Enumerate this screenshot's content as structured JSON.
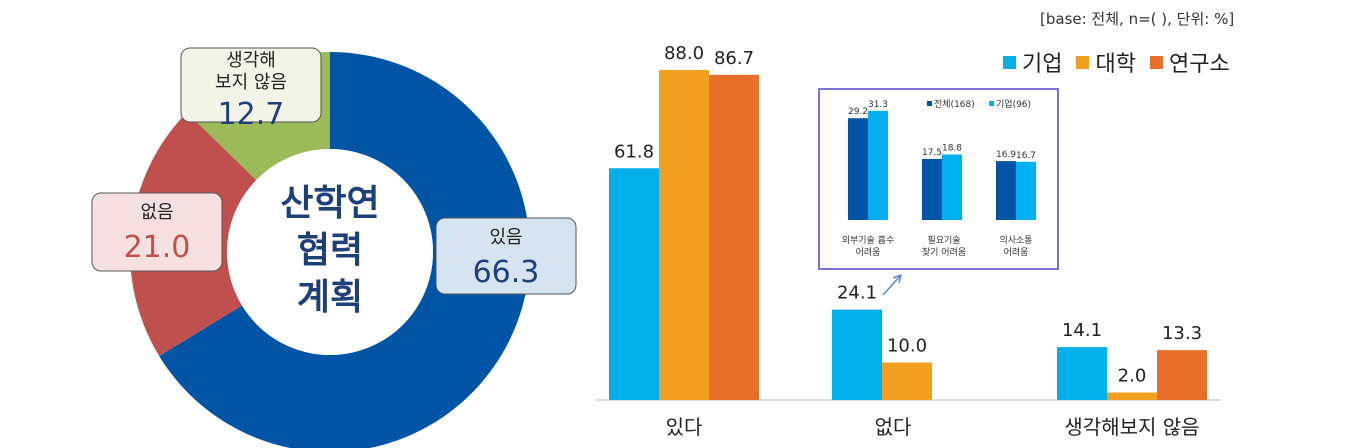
{
  "base_note": "[base: 전체, n=( ), 단위: %]",
  "colors": {
    "donut_yes": "#0054a6",
    "donut_no": "#c0504d",
    "donut_unsure": "#9bbb59",
    "company": "#00b0e8",
    "university": "#f0a01e",
    "institute": "#e8702a",
    "inset_total": "#0054a6",
    "inset_company": "#00b0f0"
  },
  "chart_data": [
    {
      "type": "pie",
      "title": "",
      "center_label": [
        "산학연",
        "협력",
        "계획"
      ],
      "slices": [
        {
          "label": "있음",
          "value": 66.3,
          "color_key": "donut_yes"
        },
        {
          "label": "없음",
          "value": 21.0,
          "color_key": "donut_no"
        },
        {
          "label": "생각해 보지 않음",
          "label_lines": [
            "생각해",
            "보지 않음"
          ],
          "value": 12.7,
          "color_key": "donut_unsure"
        }
      ]
    },
    {
      "type": "bar",
      "title": "",
      "categories": [
        "있다",
        "없다",
        "생각해보지 않음"
      ],
      "series": [
        {
          "name": "기업",
          "color_key": "company",
          "values": [
            61.8,
            24.1,
            14.1
          ]
        },
        {
          "name": "대학",
          "color_key": "university",
          "values": [
            88.0,
            10.0,
            2.0
          ]
        },
        {
          "name": "연구소",
          "color_key": "institute",
          "values": [
            86.7,
            null,
            13.3
          ]
        }
      ],
      "ylim": [
        0,
        100
      ],
      "legend_position": "top-right"
    },
    {
      "type": "bar",
      "title": "",
      "categories": [
        [
          "외부기술 흡수",
          "어려움"
        ],
        [
          "필요기술",
          "찾기 어려움"
        ],
        [
          "의사소통",
          "어려움"
        ]
      ],
      "series": [
        {
          "name": "전체(168)",
          "color_key": "inset_total",
          "values": [
            29.2,
            17.5,
            16.9
          ]
        },
        {
          "name": "기업(96)",
          "color_key": "inset_company",
          "values": [
            31.3,
            18.8,
            16.7
          ]
        }
      ],
      "ylim": [
        0,
        35
      ],
      "legend_position": "top-right"
    }
  ]
}
